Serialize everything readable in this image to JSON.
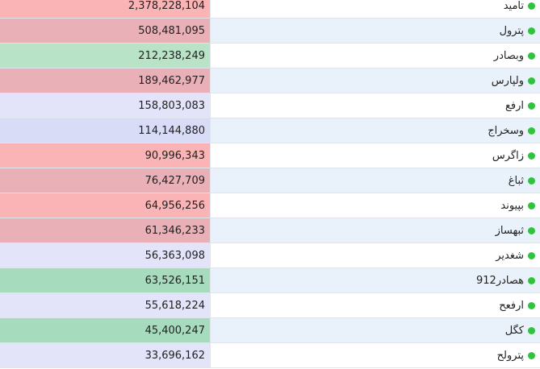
{
  "rows": [
    {
      "name": "تامید",
      "value": "2,378,228,104",
      "value_bg": "#fbb4b6",
      "name_bg": "#ffffff"
    },
    {
      "name": "پترول",
      "value": "508,481,095",
      "value_bg": "#eab0b8",
      "name_bg": "#e9f1fb"
    },
    {
      "name": "وبصادر",
      "value": "212,238,249",
      "value_bg": "#b8e3c7",
      "name_bg": "#ffffff"
    },
    {
      "name": "ولپارس",
      "value": "189,462,977",
      "value_bg": "#eab0b8",
      "name_bg": "#e9f1fb"
    },
    {
      "name": "ارفع",
      "value": "158,803,083",
      "value_bg": "#e3e3f9",
      "name_bg": "#ffffff"
    },
    {
      "name": "وسخراج",
      "value": "114,144,880",
      "value_bg": "#d9dcf7",
      "name_bg": "#e9f1fb"
    },
    {
      "name": "زاگرس",
      "value": "90,996,343",
      "value_bg": "#fbb4b6",
      "name_bg": "#ffffff"
    },
    {
      "name": "ثباغ",
      "value": "76,427,709",
      "value_bg": "#eab0b8",
      "name_bg": "#e9f1fb"
    },
    {
      "name": "بپیوند",
      "value": "64,956,256",
      "value_bg": "#fbb4b6",
      "name_bg": "#ffffff"
    },
    {
      "name": "ثبهساز",
      "value": "61,346,233",
      "value_bg": "#eab0b8",
      "name_bg": "#e9f1fb"
    },
    {
      "name": "شغدیر",
      "value": "56,363,098",
      "value_bg": "#e3e3f9",
      "name_bg": "#ffffff"
    },
    {
      "name": "هصادر912",
      "value": "63,526,151",
      "value_bg": "#a6dbbd",
      "name_bg": "#e9f1fb"
    },
    {
      "name": "ارفعح",
      "value": "55,618,224",
      "value_bg": "#e3e3f9",
      "name_bg": "#ffffff"
    },
    {
      "name": "کگل",
      "value": "45,400,247",
      "value_bg": "#a6dbbd",
      "name_bg": "#e9f1fb"
    },
    {
      "name": "پترولح",
      "value": "33,696,162",
      "value_bg": "#e3e3f9",
      "name_bg": "#ffffff"
    }
  ],
  "dot_color": "#2ec43c"
}
